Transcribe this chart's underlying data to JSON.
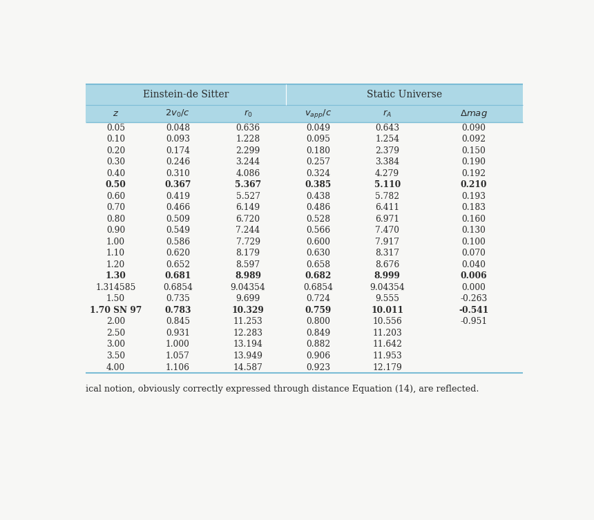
{
  "header_group1": "Einstein-de Sitter",
  "header_group2": "Static Universe",
  "rows": [
    [
      "0.05",
      "0.048",
      "0.636",
      "0.049",
      "0.643",
      "0.090"
    ],
    [
      "0.10",
      "0.093",
      "1.228",
      "0.095",
      "1.254",
      "0.092"
    ],
    [
      "0.20",
      "0.174",
      "2.299",
      "0.180",
      "2.379",
      "0.150"
    ],
    [
      "0.30",
      "0.246",
      "3.244",
      "0.257",
      "3.384",
      "0.190"
    ],
    [
      "0.40",
      "0.310",
      "4.086",
      "0.324",
      "4.279",
      "0.192"
    ],
    [
      "0.50",
      "0.367",
      "5.367",
      "0.385",
      "5.110",
      "0.210"
    ],
    [
      "0.60",
      "0.419",
      "5.527",
      "0.438",
      "5.782",
      "0.193"
    ],
    [
      "0.70",
      "0.466",
      "6.149",
      "0.486",
      "6.411",
      "0.183"
    ],
    [
      "0.80",
      "0.509",
      "6.720",
      "0.528",
      "6.971",
      "0.160"
    ],
    [
      "0.90",
      "0.549",
      "7.244",
      "0.566",
      "7.470",
      "0.130"
    ],
    [
      "1.00",
      "0.586",
      "7.729",
      "0.600",
      "7.917",
      "0.100"
    ],
    [
      "1.10",
      "0.620",
      "8.179",
      "0.630",
      "8.317",
      "0.070"
    ],
    [
      "1.20",
      "0.652",
      "8.597",
      "0.658",
      "8.676",
      "0.040"
    ],
    [
      "1.30",
      "0.681",
      "8.989",
      "0.682",
      "8.999",
      "0.006"
    ],
    [
      "1.314585",
      "0.6854",
      "9.04354",
      "0.6854",
      "9.04354",
      "0.000"
    ],
    [
      "1.50",
      "0.735",
      "9.699",
      "0.724",
      "9.555",
      "-0.263"
    ],
    [
      "1.70 SN 97",
      "0.783",
      "10.329",
      "0.759",
      "10.011",
      "-0.541"
    ],
    [
      "2.00",
      "0.845",
      "11.253",
      "0.800",
      "10.556",
      "-0.951"
    ],
    [
      "2.50",
      "0.931",
      "12.283",
      "0.849",
      "11.203",
      ""
    ],
    [
      "3.00",
      "1.000",
      "13.194",
      "0.882",
      "11.642",
      ""
    ],
    [
      "3.50",
      "1.057",
      "13.949",
      "0.906",
      "11.953",
      ""
    ],
    [
      "4.00",
      "1.106",
      "14.587",
      "0.923",
      "12.179",
      ""
    ]
  ],
  "bold_rows": [
    5,
    13,
    16
  ],
  "header_bg": "#add8e6",
  "border_color": "#7bbcd5",
  "text_color": "#2a2a2a",
  "footer_text": "ical notion, obviously correctly expressed through distance Equation (14), are reflected.",
  "fig_bg": "#f7f7f5"
}
